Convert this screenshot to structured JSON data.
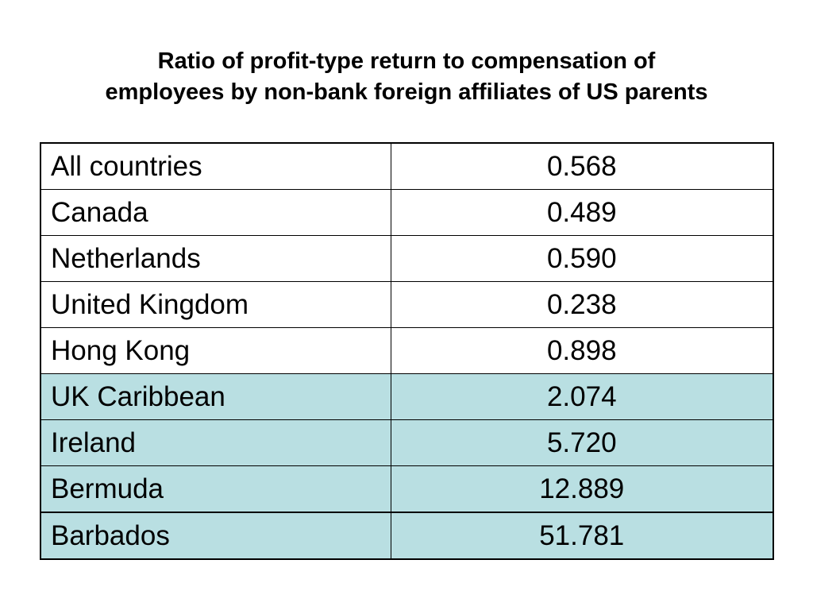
{
  "title": {
    "line1": "Ratio of profit-type return to compensation of",
    "line2": "employees by non-bank foreign affiliates of US parents"
  },
  "colors": {
    "highlight": "#b9dfe2",
    "plain": "#ffffff"
  },
  "rows": [
    {
      "country": "All countries",
      "ratio": "0.568",
      "highlight": false
    },
    {
      "country": "Canada",
      "ratio": "0.489",
      "highlight": false
    },
    {
      "country": "Netherlands",
      "ratio": "0.590",
      "highlight": false
    },
    {
      "country": "United Kingdom",
      "ratio": "0.238",
      "highlight": false
    },
    {
      "country": "Hong Kong",
      "ratio": "0.898",
      "highlight": false
    },
    {
      "country": "UK Caribbean",
      "ratio": "2.074",
      "highlight": true
    },
    {
      "country": "Ireland",
      "ratio": "5.720",
      "highlight": true
    },
    {
      "country": "Bermuda",
      "ratio": "12.889",
      "highlight": true
    },
    {
      "country": "Barbados",
      "ratio": "51.781",
      "highlight": true
    }
  ]
}
